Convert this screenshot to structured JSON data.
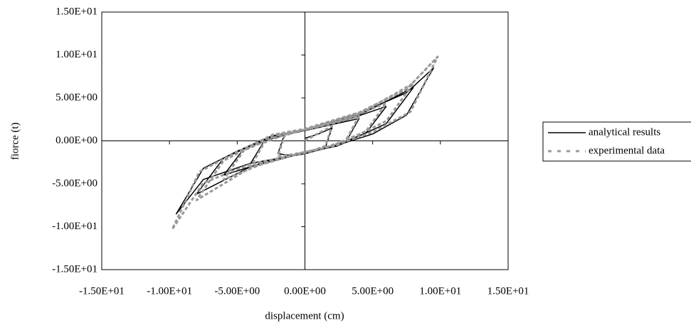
{
  "chart_data": {
    "type": "line",
    "xlabel": "displacement (cm)",
    "ylabel": "fiorce (t)",
    "xlim": [
      -15,
      15
    ],
    "ylim": [
      -15,
      15
    ],
    "xticks": [
      {
        "value": -15,
        "label": "-1.50E+01"
      },
      {
        "value": -10,
        "label": "-1.00E+01"
      },
      {
        "value": -5,
        "label": "-5.00E+00"
      },
      {
        "value": 0,
        "label": "0.00E+00"
      },
      {
        "value": 5,
        "label": "5.00E+00"
      },
      {
        "value": 10,
        "label": "1.00E+01"
      },
      {
        "value": 15,
        "label": "1.50E+01"
      }
    ],
    "yticks": [
      {
        "value": -15,
        "label": "-1.50E+01"
      },
      {
        "value": -10,
        "label": "-1.00E+01"
      },
      {
        "value": -5,
        "label": "-5.00E+00"
      },
      {
        "value": 0,
        "label": "0.00E+00"
      },
      {
        "value": 5,
        "label": "5.00E+00"
      },
      {
        "value": 10,
        "label": "1.00E+01"
      },
      {
        "value": 15,
        "label": "1.50E+01"
      }
    ],
    "series": [
      {
        "name": "analytical results",
        "color": "#000000",
        "dash": false,
        "x": [
          0,
          1,
          2,
          1.5,
          0.6,
          0,
          -1,
          -2,
          -1.5,
          -0.6,
          0,
          2,
          4,
          3,
          1.2,
          0,
          -2,
          -4,
          -3,
          -1.2,
          0,
          3,
          6,
          4.5,
          1.8,
          0,
          -3,
          -6,
          -4.5,
          -1.8,
          0,
          4,
          8,
          6,
          2.4,
          0,
          -4,
          -8,
          -6,
          -2.4,
          0,
          4,
          7.5,
          9.5,
          7.5,
          5,
          2.4,
          0,
          -4,
          -7.5,
          -9.5,
          -7.5,
          -5,
          -2.4,
          0,
          4,
          7.5,
          9.5
        ],
        "values": [
          0.3,
          0.8,
          1.5,
          -0.8,
          -1.2,
          -1.4,
          -1.7,
          -1.5,
          0.8,
          1.0,
          1.2,
          1.9,
          2.6,
          -0.2,
          -1.0,
          -1.4,
          -2.1,
          -2.6,
          0.0,
          0.8,
          1.2,
          2.4,
          4.0,
          0.9,
          -0.8,
          -1.4,
          -2.5,
          -4.0,
          -0.9,
          0.6,
          1.2,
          3.0,
          6.2,
          2.0,
          -0.6,
          -1.4,
          -3.0,
          -6.2,
          -2.0,
          0.5,
          1.2,
          3.2,
          5.6,
          8.5,
          3.0,
          0.8,
          -0.5,
          -1.5,
          -2.6,
          -4.5,
          -8.5,
          -3.2,
          -1.2,
          0.6,
          1.3,
          3.2,
          5.6,
          8.5
        ]
      },
      {
        "name": "experimental data",
        "color": "#999999",
        "dash": true,
        "x": [
          0,
          1,
          2,
          1.5,
          0.6,
          0,
          -1,
          -2,
          -1.5,
          -0.6,
          0,
          2,
          4,
          3,
          1.2,
          0,
          -2,
          -4,
          -3,
          -1.2,
          0,
          3,
          6,
          4.5,
          1.8,
          0,
          -3,
          -6,
          -4.5,
          -1.8,
          0,
          4,
          8,
          6,
          2.4,
          0,
          -4,
          -8,
          -6,
          -2.4,
          0,
          4,
          7.5,
          9.8,
          7.8,
          5,
          2.4,
          0,
          -4,
          -7.5,
          -9.8,
          -7.8,
          -5,
          -2.4,
          0,
          4,
          7.5,
          9.8
        ],
        "values": [
          0,
          0.9,
          1.7,
          -0.6,
          -1.1,
          -1.3,
          -1.6,
          -1.8,
          0.6,
          1.1,
          1.3,
          2.0,
          2.9,
          0.0,
          -0.9,
          -1.3,
          -2.2,
          -3.0,
          -0.2,
          0.9,
          1.3,
          2.5,
          4.4,
          1.1,
          -0.7,
          -1.3,
          -2.6,
          -4.5,
          -1.1,
          0.7,
          1.3,
          3.1,
          6.7,
          2.3,
          -0.5,
          -1.3,
          -3.1,
          -6.9,
          -2.3,
          0.6,
          1.3,
          3.3,
          6.0,
          9.8,
          3.4,
          1.0,
          -0.4,
          -1.4,
          -2.7,
          -4.9,
          -10.3,
          -3.6,
          -1.3,
          0.7,
          1.4,
          3.3,
          6.0,
          9.8
        ]
      }
    ]
  }
}
